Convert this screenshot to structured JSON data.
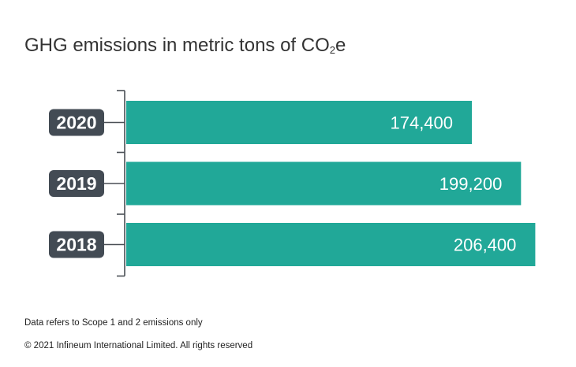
{
  "title_main": "GHG emissions in metric tons of CO",
  "title_sub": "2",
  "title_end": "e",
  "chart_data": {
    "type": "bar",
    "orientation": "horizontal",
    "categories": [
      "2020",
      "2019",
      "2018"
    ],
    "values": [
      174400,
      199200,
      206400
    ],
    "value_labels": [
      "174,400",
      "199,200",
      "206,400"
    ],
    "xlim": [
      0,
      215000
    ],
    "bar_color": "#21a898",
    "category_badge_color": "#434b54"
  },
  "footnotes": {
    "scope": "Data refers to Scope 1 and 2 emissions only",
    "copyright": "© 2021 Infineum International Limited. All rights reserved"
  }
}
